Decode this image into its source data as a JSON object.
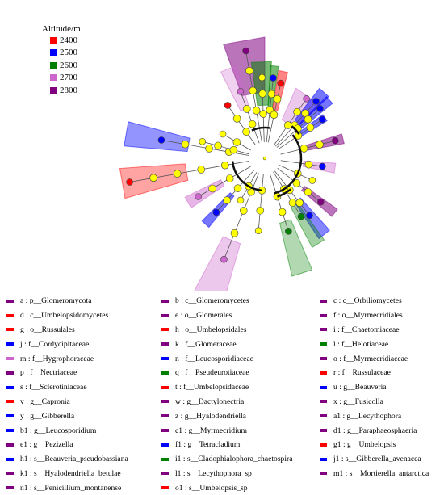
{
  "legend": {
    "title": "Altitude/m",
    "items": [
      {
        "label": "2400",
        "color": "#ff0000"
      },
      {
        "label": "2500",
        "color": "#0000ff"
      },
      {
        "label": "2600",
        "color": "#007f00"
      },
      {
        "label": "2700",
        "color": "#cc66cc"
      },
      {
        "label": "2800",
        "color": "#800080"
      }
    ]
  },
  "taxa": [
    {
      "label": "a : p__Glomeromycota",
      "color": "#800080"
    },
    {
      "label": "b : c__Glomeromycetes",
      "color": "#800080"
    },
    {
      "label": "c : c__Orbiliomycetes",
      "color": "#800080"
    },
    {
      "label": "d : c__Umbelopsidomycetes",
      "color": "#ff0000"
    },
    {
      "label": "e : o__Glomerales",
      "color": "#800080"
    },
    {
      "label": "f : o__Myrmecridiales",
      "color": "#800080"
    },
    {
      "label": "g : o__Russulales",
      "color": "#ff0000"
    },
    {
      "label": "h : o__Umbelopsidales",
      "color": "#ff0000"
    },
    {
      "label": "i : f__Chaetomiaceae",
      "color": "#800080"
    },
    {
      "label": "j : f__Cordycipitaceae",
      "color": "#0000ff"
    },
    {
      "label": "k : f__Glomeraceae",
      "color": "#800080"
    },
    {
      "label": "l : f__Helotiaceae",
      "color": "#007f00"
    },
    {
      "label": "m : f__Hygrophoraceae",
      "color": "#cc66cc"
    },
    {
      "label": "n : f__Leucosporidiaceae",
      "color": "#0000ff"
    },
    {
      "label": "o : f__Myrmecridiaceae",
      "color": "#800080"
    },
    {
      "label": "p : f__Nectriaceae",
      "color": "#800080"
    },
    {
      "label": "q : f__Pseudeurotiaceae",
      "color": "#007f00"
    },
    {
      "label": "r : f__Russulaceae",
      "color": "#ff0000"
    },
    {
      "label": "s : f__Sclerotiniaceae",
      "color": "#0000ff"
    },
    {
      "label": "t : f__Umbelopsidaceae",
      "color": "#ff0000"
    },
    {
      "label": "u : g__Beauveria",
      "color": "#0000ff"
    },
    {
      "label": "v : g__Capronia",
      "color": "#ff0000"
    },
    {
      "label": "w : g__Dactylonectria",
      "color": "#800080"
    },
    {
      "label": "x : g__Fusicolla",
      "color": "#800080"
    },
    {
      "label": "y : g__Gibberella",
      "color": "#0000ff"
    },
    {
      "label": "z : g__Hyalodendriella",
      "color": "#800080"
    },
    {
      "label": "a1 : g__Lecythophora",
      "color": "#800080"
    },
    {
      "label": "b1 : g__Leucosporidium",
      "color": "#0000ff"
    },
    {
      "label": "c1 : g__Myrmecridium",
      "color": "#800080"
    },
    {
      "label": "d1 : g__Paraphaeosphaeria",
      "color": "#800080"
    },
    {
      "label": "e1 : g__Pezizella",
      "color": "#800080"
    },
    {
      "label": "f1 : g__Tetracladium",
      "color": "#0000ff"
    },
    {
      "label": "g1 : g__Umbelopsis",
      "color": "#ff0000"
    },
    {
      "label": "h1 : s__Beauveria_pseudobassiana",
      "color": "#0000ff"
    },
    {
      "label": "i1 : s__Cladophialophora_chaetospira",
      "color": "#007f00"
    },
    {
      "label": "j1 : s__Gibberella_avenacea",
      "color": "#0000ff"
    },
    {
      "label": "k1 : s__Hyalodendriella_betulae",
      "color": "#800080"
    },
    {
      "label": "l1 : s__Lecythophora_sp",
      "color": "#800080"
    },
    {
      "label": "m1 : s__Mortierella_antarctica",
      "color": "#800080"
    },
    {
      "label": "n1 : s__Penicillium_montanense",
      "color": "#800080"
    },
    {
      "label": "o1 : s__Umbelopsis_sp",
      "color": "#ff0000"
    }
  ]
}
